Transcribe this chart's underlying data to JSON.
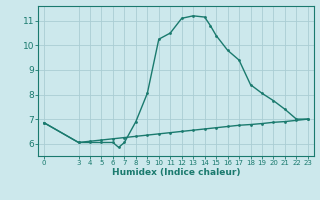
{
  "xlabel": "Humidex (Indice chaleur)",
  "background_color": "#cce8ec",
  "line_color": "#1a7a6e",
  "grid_color": "#aacdd4",
  "series1_x": [
    0,
    3,
    4,
    5,
    6,
    6.5,
    7,
    8,
    9,
    10,
    11,
    12,
    13,
    14,
    14.5,
    15,
    16,
    17,
    18,
    19,
    20,
    21,
    22,
    23
  ],
  "series1_y": [
    6.85,
    6.05,
    6.05,
    6.05,
    6.05,
    5.85,
    6.05,
    6.9,
    8.05,
    10.25,
    10.5,
    11.1,
    11.2,
    11.15,
    10.8,
    10.4,
    9.8,
    9.4,
    8.4,
    8.05,
    7.75,
    7.4,
    7.0,
    7.0
  ],
  "series2_x": [
    0,
    3,
    4,
    5,
    6,
    7,
    8,
    9,
    10,
    11,
    12,
    13,
    14,
    15,
    16,
    17,
    18,
    19,
    20,
    21,
    22,
    23
  ],
  "series2_y": [
    6.85,
    6.05,
    6.1,
    6.15,
    6.2,
    6.25,
    6.3,
    6.35,
    6.4,
    6.45,
    6.5,
    6.55,
    6.6,
    6.65,
    6.7,
    6.75,
    6.78,
    6.82,
    6.87,
    6.9,
    6.95,
    7.0
  ],
  "xlim": [
    -0.5,
    23.5
  ],
  "ylim": [
    5.5,
    11.6
  ],
  "xticks": [
    0,
    3,
    4,
    5,
    6,
    7,
    8,
    9,
    10,
    11,
    12,
    13,
    14,
    15,
    16,
    17,
    18,
    19,
    20,
    21,
    22,
    23
  ],
  "yticks": [
    6,
    7,
    8,
    9,
    10,
    11
  ],
  "xlabel_fontsize": 6.5,
  "xtick_fontsize": 5.0,
  "ytick_fontsize": 6.5,
  "linewidth": 1.0,
  "markersize": 2.0
}
